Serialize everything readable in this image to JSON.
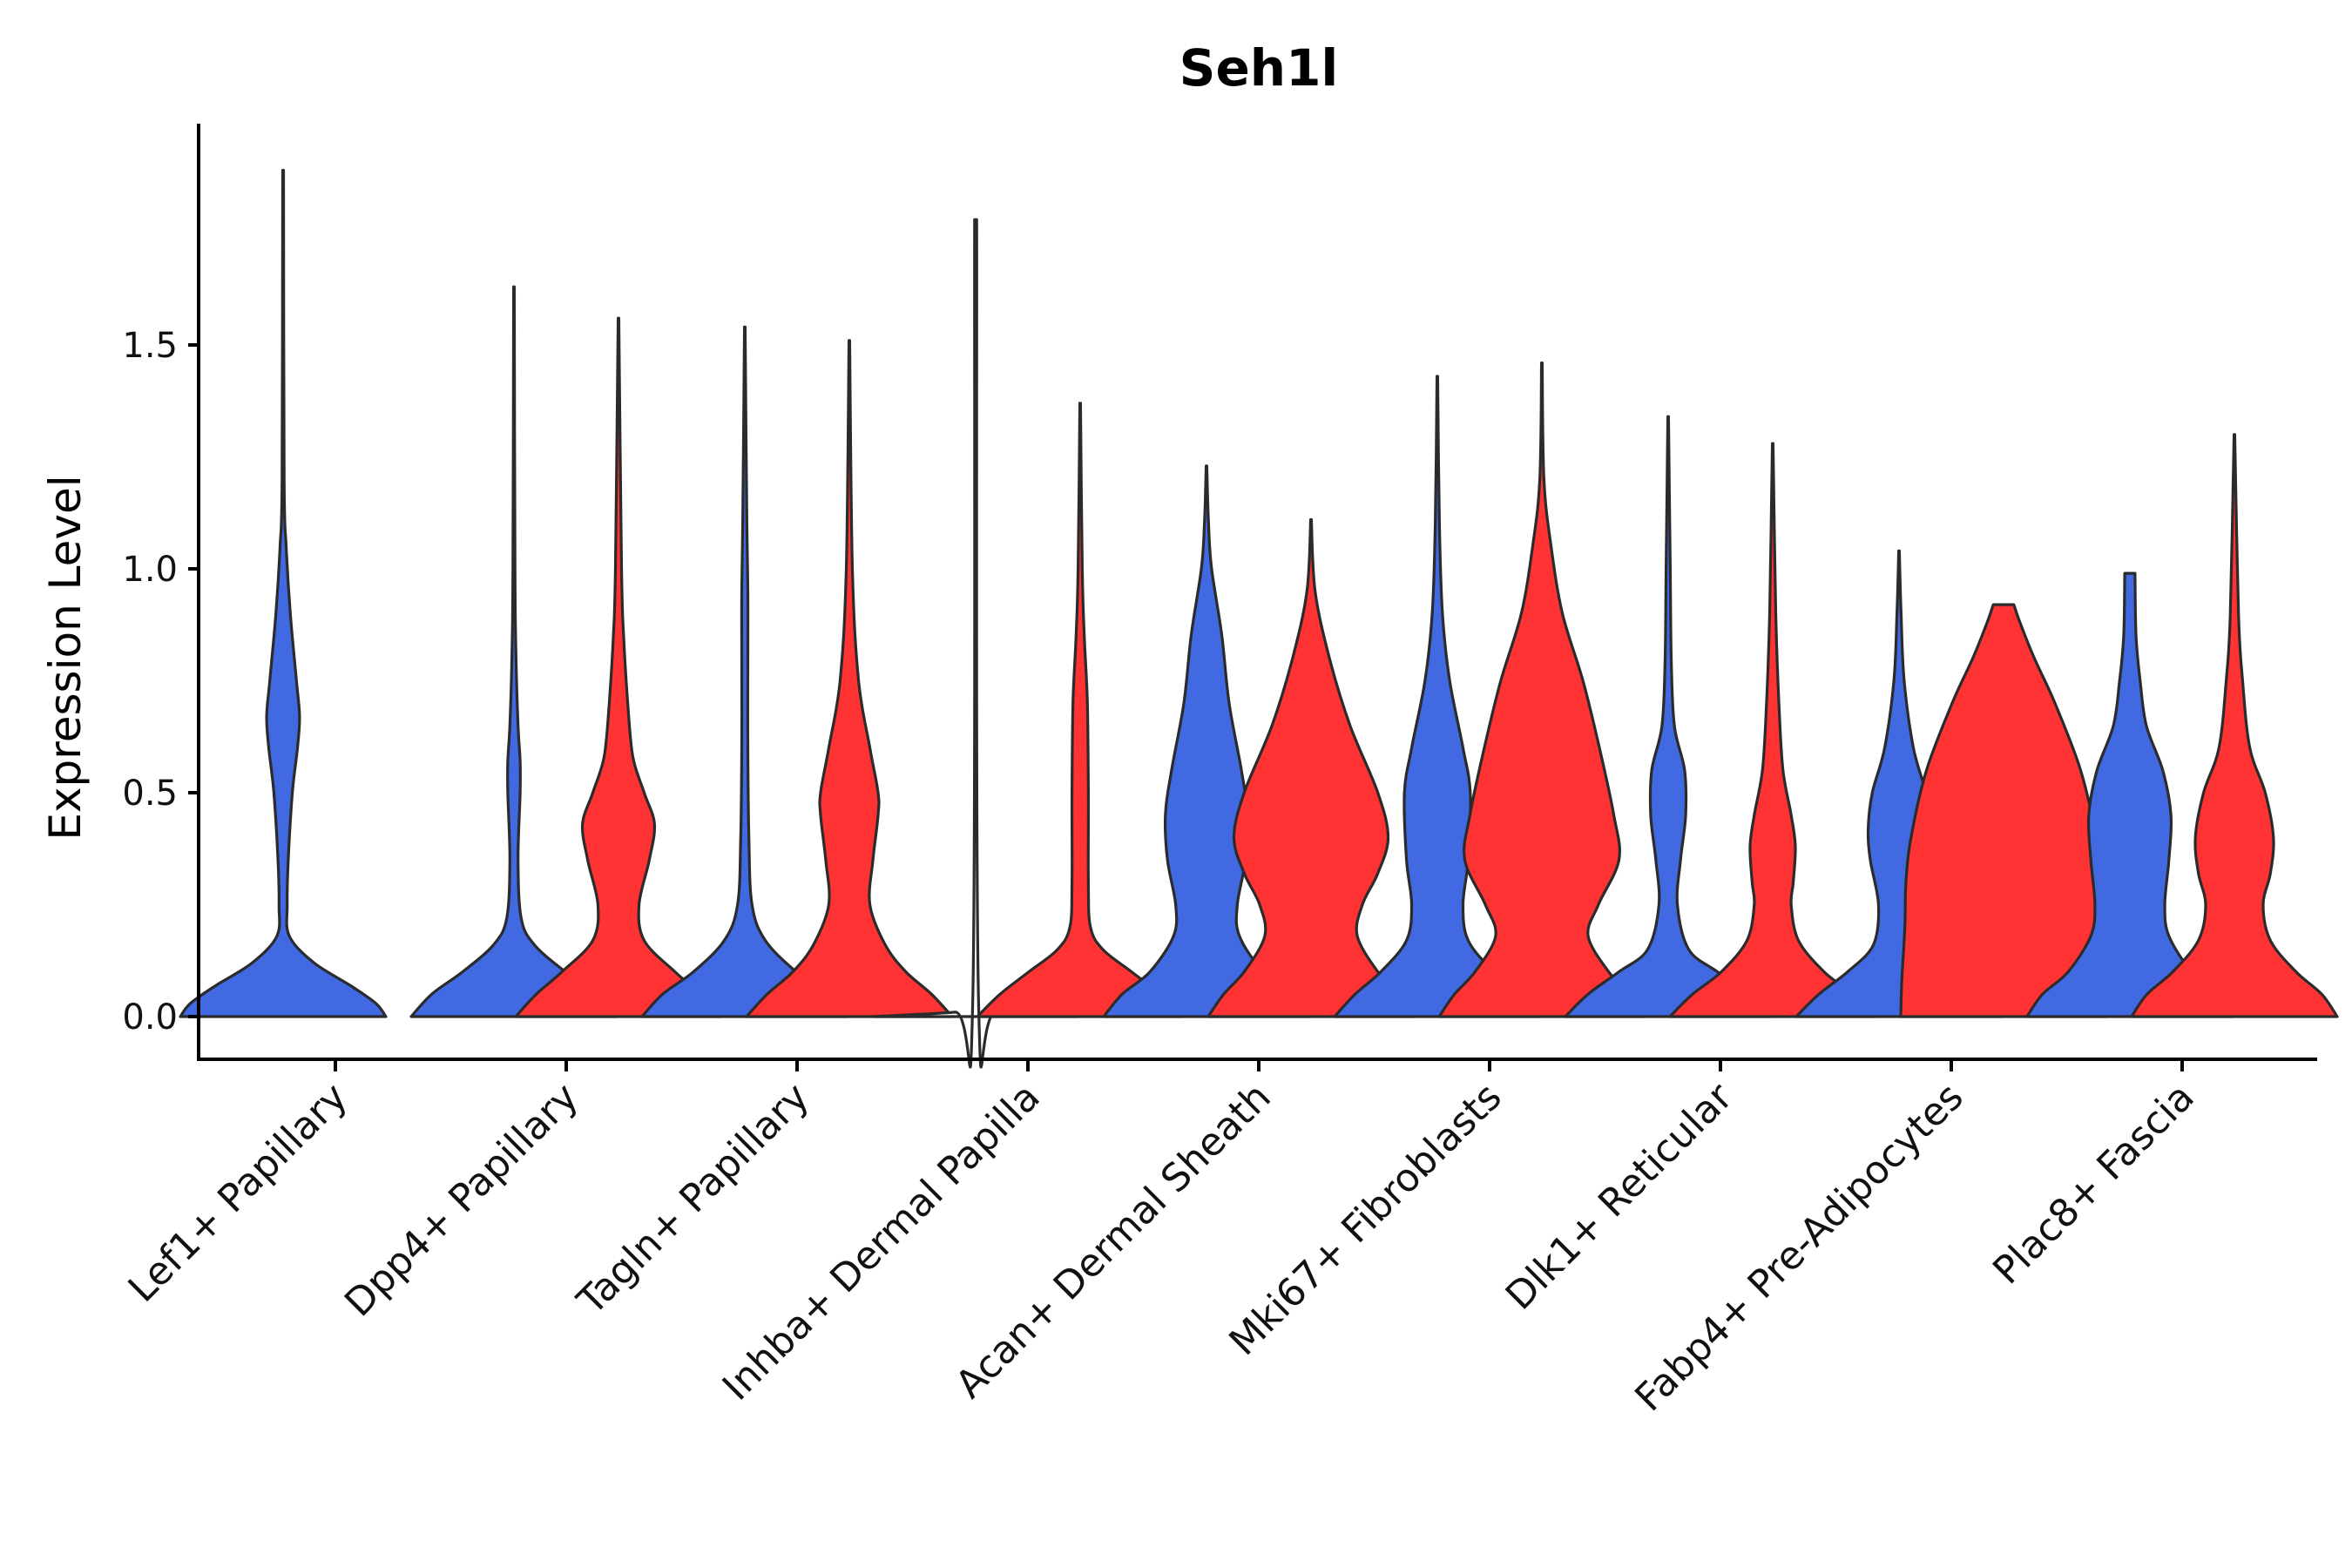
{
  "chart_data": {
    "type": "violin",
    "title": "Seh1l",
    "ylabel": "Expression Level",
    "xlabel": "",
    "ylim": [
      -0.1,
      2.0
    ],
    "yticks": [
      0.0,
      0.5,
      1.0,
      1.5
    ],
    "ytick_labels": [
      "0.0",
      "0.5",
      "1.0",
      "1.5"
    ],
    "colors": {
      "group_a": "#4169e1",
      "group_b": "#ff3333",
      "outline": "#2b2b2b"
    },
    "categories": [
      "Lef1+ Papillary",
      "Dpp4+ Papillary",
      "Tagln+ Papillary",
      "Inhba+ Dermal Papilla",
      "Acan+ Dermal Sheath",
      "Mki67+ Fibroblasts",
      "Dlk1+ Reticular",
      "Fabp4+ Pre-Adipocytes",
      "Plac8+ Fascia"
    ],
    "series": [
      {
        "name": "group_a",
        "violins": [
          {
            "max": 1.89,
            "profile": [
              [
                0,
                1
              ],
              [
                0.03,
                0.9
              ],
              [
                0.07,
                0.65
              ],
              [
                0.12,
                0.3
              ],
              [
                0.18,
                0.06
              ],
              [
                0.25,
                0.04
              ],
              [
                0.35,
                0.05
              ],
              [
                0.5,
                0.09
              ],
              [
                0.6,
                0.14
              ],
              [
                0.67,
                0.16
              ],
              [
                0.75,
                0.13
              ],
              [
                0.9,
                0.07
              ],
              [
                1.05,
                0.03
              ],
              [
                1.2,
                0.01
              ],
              [
                1.89,
                0.004
              ]
            ]
          },
          {
            "max": 1.63,
            "profile": [
              [
                0,
                1
              ],
              [
                0.05,
                0.8
              ],
              [
                0.1,
                0.5
              ],
              [
                0.16,
                0.2
              ],
              [
                0.22,
                0.07
              ],
              [
                0.35,
                0.04
              ],
              [
                0.5,
                0.06
              ],
              [
                0.57,
                0.06
              ],
              [
                0.65,
                0.04
              ],
              [
                0.8,
                0.02
              ],
              [
                1.0,
                0.01
              ],
              [
                1.63,
                0.003
              ]
            ]
          },
          {
            "max": 1.54,
            "profile": [
              [
                0,
                1
              ],
              [
                0.05,
                0.8
              ],
              [
                0.1,
                0.5
              ],
              [
                0.17,
                0.2
              ],
              [
                0.25,
                0.07
              ],
              [
                0.4,
                0.04
              ],
              [
                0.6,
                0.03
              ],
              [
                0.8,
                0.03
              ],
              [
                0.95,
                0.03
              ],
              [
                1.1,
                0.02
              ],
              [
                1.54,
                0.003
              ]
            ]
          },
          {
            "max": 1.78,
            "profile": [
              [
                0,
                1
              ],
              [
                0.01,
                0.2
              ],
              [
                0.02,
                0.03
              ],
              [
                1.78,
                0.01
              ]
            ]
          },
          {
            "max": 1.23,
            "profile": [
              [
                0,
                1
              ],
              [
                0.05,
                0.82
              ],
              [
                0.1,
                0.55
              ],
              [
                0.18,
                0.32
              ],
              [
                0.25,
                0.3
              ],
              [
                0.35,
                0.38
              ],
              [
                0.45,
                0.4
              ],
              [
                0.55,
                0.34
              ],
              [
                0.7,
                0.22
              ],
              [
                0.85,
                0.15
              ],
              [
                1.0,
                0.05
              ],
              [
                1.1,
                0.02
              ],
              [
                1.23,
                0.003
              ]
            ]
          },
          {
            "max": 1.43,
            "profile": [
              [
                0,
                1
              ],
              [
                0.05,
                0.8
              ],
              [
                0.1,
                0.55
              ],
              [
                0.17,
                0.3
              ],
              [
                0.25,
                0.25
              ],
              [
                0.35,
                0.3
              ],
              [
                0.5,
                0.32
              ],
              [
                0.6,
                0.25
              ],
              [
                0.75,
                0.12
              ],
              [
                0.9,
                0.05
              ],
              [
                1.1,
                0.02
              ],
              [
                1.43,
                0.003
              ]
            ]
          },
          {
            "max": 1.34,
            "profile": [
              [
                0,
                1
              ],
              [
                0.05,
                0.78
              ],
              [
                0.1,
                0.48
              ],
              [
                0.15,
                0.2
              ],
              [
                0.25,
                0.09
              ],
              [
                0.35,
                0.12
              ],
              [
                0.45,
                0.17
              ],
              [
                0.55,
                0.16
              ],
              [
                0.65,
                0.06
              ],
              [
                0.8,
                0.03
              ],
              [
                1.0,
                0.02
              ],
              [
                1.34,
                0.003
              ]
            ]
          },
          {
            "max": 1.04,
            "profile": [
              [
                0,
                1
              ],
              [
                0.05,
                0.78
              ],
              [
                0.1,
                0.5
              ],
              [
                0.16,
                0.25
              ],
              [
                0.25,
                0.2
              ],
              [
                0.35,
                0.28
              ],
              [
                0.42,
                0.3
              ],
              [
                0.5,
                0.26
              ],
              [
                0.6,
                0.14
              ],
              [
                0.75,
                0.05
              ],
              [
                0.9,
                0.02
              ],
              [
                1.04,
                0.003
              ]
            ]
          },
          {
            "max": 0.99,
            "profile": [
              [
                0,
                1
              ],
              [
                0.05,
                0.85
              ],
              [
                0.1,
                0.6
              ],
              [
                0.18,
                0.38
              ],
              [
                0.25,
                0.34
              ],
              [
                0.35,
                0.38
              ],
              [
                0.45,
                0.4
              ],
              [
                0.55,
                0.32
              ],
              [
                0.65,
                0.16
              ],
              [
                0.75,
                0.1
              ],
              [
                0.85,
                0.06
              ],
              [
                0.99,
                0.05
              ]
            ]
          }
        ]
      },
      {
        "name": "group_b",
        "violins": [
          null,
          {
            "max": 1.56,
            "profile": [
              [
                0,
                1
              ],
              [
                0.05,
                0.8
              ],
              [
                0.1,
                0.55
              ],
              [
                0.17,
                0.25
              ],
              [
                0.25,
                0.2
              ],
              [
                0.35,
                0.3
              ],
              [
                0.43,
                0.35
              ],
              [
                0.5,
                0.25
              ],
              [
                0.58,
                0.14
              ],
              [
                0.7,
                0.09
              ],
              [
                0.85,
                0.05
              ],
              [
                1.0,
                0.03
              ],
              [
                1.56,
                0.003
              ]
            ]
          },
          {
            "max": 1.51,
            "profile": [
              [
                0,
                1
              ],
              [
                0.05,
                0.8
              ],
              [
                0.1,
                0.55
              ],
              [
                0.16,
                0.35
              ],
              [
                0.25,
                0.2
              ],
              [
                0.35,
                0.23
              ],
              [
                0.45,
                0.28
              ],
              [
                0.5,
                0.28
              ],
              [
                0.6,
                0.2
              ],
              [
                0.75,
                0.09
              ],
              [
                1.0,
                0.03
              ],
              [
                1.51,
                0.003
              ]
            ]
          },
          {
            "max": 1.37,
            "profile": [
              [
                0,
                1
              ],
              [
                0.05,
                0.78
              ],
              [
                0.1,
                0.5
              ],
              [
                0.15,
                0.22
              ],
              [
                0.2,
                0.1
              ],
              [
                0.3,
                0.08
              ],
              [
                0.5,
                0.08
              ],
              [
                0.7,
                0.07
              ],
              [
                0.85,
                0.04
              ],
              [
                1.0,
                0.02
              ],
              [
                1.37,
                0.003
              ]
            ]
          },
          {
            "max": 1.11,
            "profile": [
              [
                0,
                1
              ],
              [
                0.05,
                0.85
              ],
              [
                0.1,
                0.65
              ],
              [
                0.18,
                0.45
              ],
              [
                0.25,
                0.5
              ],
              [
                0.32,
                0.65
              ],
              [
                0.4,
                0.75
              ],
              [
                0.5,
                0.65
              ],
              [
                0.65,
                0.38
              ],
              [
                0.8,
                0.18
              ],
              [
                0.95,
                0.04
              ],
              [
                1.11,
                0.003
              ]
            ]
          },
          {
            "max": 1.46,
            "profile": [
              [
                0,
                1
              ],
              [
                0.05,
                0.85
              ],
              [
                0.1,
                0.65
              ],
              [
                0.18,
                0.45
              ],
              [
                0.25,
                0.55
              ],
              [
                0.35,
                0.75
              ],
              [
                0.45,
                0.7
              ],
              [
                0.6,
                0.56
              ],
              [
                0.75,
                0.4
              ],
              [
                0.9,
                0.2
              ],
              [
                1.05,
                0.09
              ],
              [
                1.2,
                0.02
              ],
              [
                1.46,
                0.003
              ]
            ]
          },
          {
            "max": 1.28,
            "profile": [
              [
                0,
                1
              ],
              [
                0.05,
                0.78
              ],
              [
                0.1,
                0.5
              ],
              [
                0.17,
                0.25
              ],
              [
                0.25,
                0.18
              ],
              [
                0.3,
                0.2
              ],
              [
                0.38,
                0.22
              ],
              [
                0.45,
                0.18
              ],
              [
                0.55,
                0.1
              ],
              [
                0.7,
                0.06
              ],
              [
                0.9,
                0.03
              ],
              [
                1.28,
                0.003
              ]
            ]
          },
          {
            "max": 0.92,
            "profile": [
              [
                0,
                1
              ],
              [
                0.08,
                0.99
              ],
              [
                0.2,
                0.96
              ],
              [
                0.3,
                0.95
              ],
              [
                0.4,
                0.9
              ],
              [
                0.55,
                0.75
              ],
              [
                0.7,
                0.5
              ],
              [
                0.8,
                0.3
              ],
              [
                0.88,
                0.16
              ],
              [
                0.92,
                0.1
              ]
            ]
          },
          {
            "max": 1.3,
            "profile": [
              [
                0,
                1
              ],
              [
                0.05,
                0.85
              ],
              [
                0.1,
                0.6
              ],
              [
                0.17,
                0.35
              ],
              [
                0.25,
                0.28
              ],
              [
                0.32,
                0.35
              ],
              [
                0.4,
                0.38
              ],
              [
                0.5,
                0.3
              ],
              [
                0.6,
                0.15
              ],
              [
                0.75,
                0.08
              ],
              [
                0.9,
                0.04
              ],
              [
                1.3,
                0.003
              ]
            ]
          }
        ]
      }
    ]
  }
}
